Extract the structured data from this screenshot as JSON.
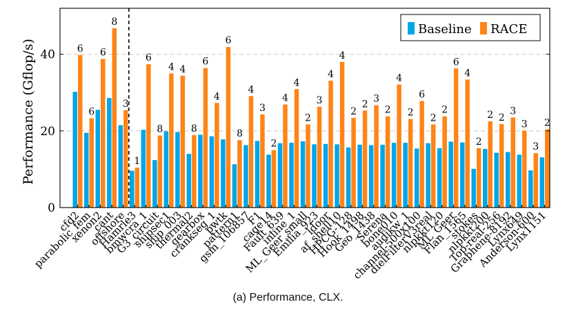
{
  "chart_data": {
    "type": "bar",
    "ylabel": "Performance (Gflop/s)",
    "ylim": [
      0,
      52
    ],
    "yticks": [
      0,
      20,
      40
    ],
    "grid": "horizontal dashed at y ticks",
    "legend": "top-right",
    "separator_after_index": 5,
    "categories": [
      "cfd2",
      "parabolic_fem",
      "xenon2",
      "cant",
      "offshore",
      "Hamrle3",
      "bmwcra_1",
      "G3_circuit",
      "shipsec1",
      "ship_003",
      "thermal2",
      "gearbox",
      "crankseg_1",
      "pwtk",
      "pattern1",
      "gsm_106857",
      "F1",
      "cage14",
      "Fault_639",
      "inline_1",
      "ML_Geer_small",
      "Emilia_923",
      "ldoor",
      "af_shell10",
      "HPCG-128",
      "Hook_1498",
      "Geo_1438",
      "Serena",
      "bone010",
      "audikw_1",
      "channel-500x100",
      "dielFilterV3real",
      "nlpkkt120",
      "ML_Geer",
      "Flan_1565",
      "stokes",
      "nlpkkt200",
      "Top-real-256",
      "Graphene-8192",
      "Lynx649",
      "Anderson-600",
      "Lynx1151"
    ],
    "series": [
      {
        "name": "Baseline",
        "color": "#00a6e8",
        "values": [
          30.2,
          19.5,
          25.5,
          28.6,
          21.5,
          9.6,
          20.3,
          12.4,
          19.9,
          19.7,
          14.0,
          19.0,
          18.6,
          17.8,
          11.3,
          16.3,
          17.4,
          13.8,
          16.8,
          16.9,
          17.3,
          16.5,
          16.6,
          16.5,
          15.7,
          16.4,
          16.3,
          16.4,
          16.9,
          16.9,
          15.4,
          16.8,
          15.5,
          17.2,
          17.0,
          10.1,
          15.3,
          14.3,
          14.5,
          13.8,
          9.7,
          13.1
        ]
      },
      {
        "name": "RACE",
        "color": "#ff8418",
        "values": [
          39.8,
          23.3,
          38.8,
          46.8,
          25.4,
          10.4,
          37.4,
          18.8,
          35.0,
          34.4,
          18.9,
          36.4,
          27.3,
          41.9,
          17.6,
          29.1,
          24.3,
          15.0,
          26.9,
          30.9,
          21.7,
          26.3,
          33.1,
          38.0,
          23.4,
          25.3,
          26.7,
          23.8,
          32.1,
          23.1,
          27.8,
          21.7,
          23.8,
          36.3,
          33.4,
          15.5,
          22.5,
          21.8,
          23.5,
          20.1,
          14.2,
          20.4
        ]
      }
    ],
    "annotations": [
      6,
      6,
      6,
      8,
      3,
      1,
      6,
      8,
      4,
      4,
      8,
      6,
      4,
      6,
      8,
      4,
      3,
      2,
      4,
      4,
      2,
      3,
      4,
      4,
      2,
      2,
      3,
      2,
      4,
      2,
      6,
      2,
      2,
      6,
      4,
      2,
      2,
      2,
      3,
      3,
      3,
      2
    ],
    "labels": [
      "cfd2",
      "parabolic_fem",
      "xenon2",
      "cant",
      "offshore",
      "Hamrle3",
      "bmwcra_1",
      "G3_circuit",
      "shipsec1",
      "ship_003",
      "thermal2",
      "gearbox",
      "crankseg_1",
      "pwtk",
      "pattern1",
      "gsm_106857",
      "F1",
      "cage14",
      "Fault_639",
      "inline_1",
      "ML_Geer_small",
      "Emilia_923",
      "ldoor",
      "af_shell10",
      "HPCG-128",
      "Hook_1498",
      "Geo_1438",
      "Serena",
      "bone010",
      "audikw_1",
      "channel-500x100",
      "dielFilterV3real",
      "nlpkkt120",
      "ML_Geer",
      "Flan_1565",
      "stokes",
      "nlpkkt200",
      "Top-real-256",
      "Graphene-8192",
      "Lynx649",
      "Anderson-600",
      "Lynx1151"
    ]
  },
  "caption": "(a) Performance, CLX."
}
